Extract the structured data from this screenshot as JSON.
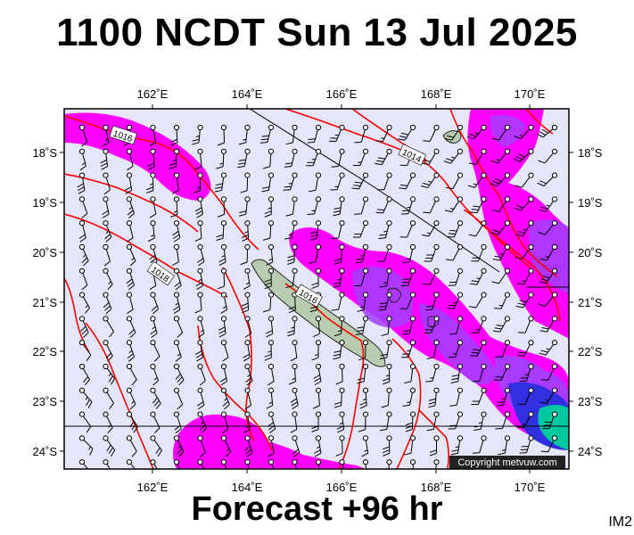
{
  "title": "1100 NCDT Sun 13 Jul 2025",
  "footer": "Forecast +96 hr",
  "corner_code": "IM2",
  "copyright": "Copyright metvuw.com",
  "axes": {
    "lon_labels": [
      "162˚E",
      "164˚E",
      "166˚E",
      "168˚E",
      "170˚E"
    ],
    "lat_labels": [
      "18˚S",
      "19˚S",
      "20˚S",
      "21˚S",
      "22˚S",
      "23˚S",
      "24˚S"
    ]
  },
  "isobar_labels": [
    "1016",
    "1014",
    "1018",
    "1016"
  ],
  "colors": {
    "background": "#e6e6fa",
    "precip_light": "#ff00ff",
    "precip_medium": "#a040ff",
    "precip_heavy": "#3030e0",
    "precip_extreme": "#00c8a0",
    "isobar": "#ff0000",
    "land": "#b8ccb0"
  }
}
